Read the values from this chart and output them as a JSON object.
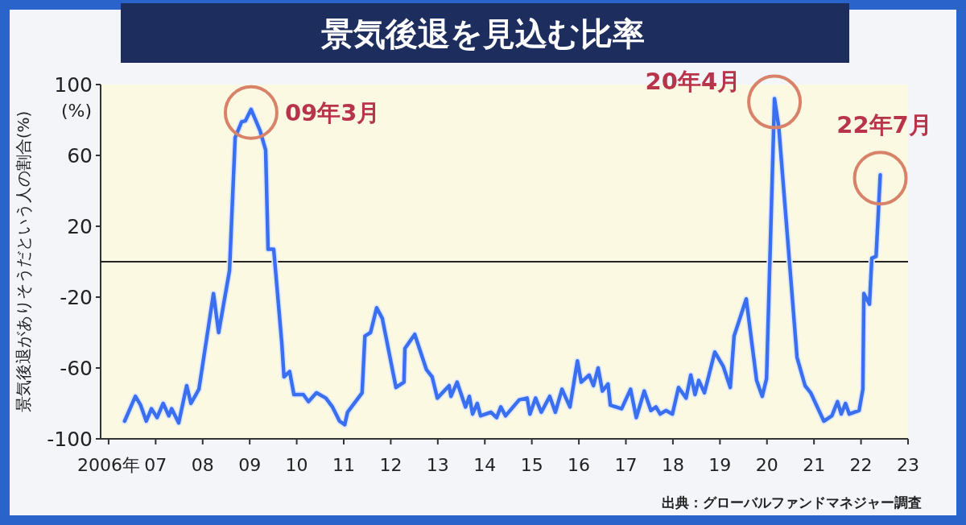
{
  "chart_data": {
    "type": "line",
    "title": "景気後退を見込む比率",
    "ylabel": "景気後退がありそうだという人の割合(%)",
    "x": [
      2006.34,
      2006.57,
      2006.68,
      2006.8,
      2006.91,
      2007.03,
      2007.16,
      2007.28,
      2007.34,
      2007.49,
      2007.66,
      2007.75,
      2007.92,
      2008.23,
      2008.34,
      2008.57,
      2008.69,
      2008.83,
      2008.91,
      2009.03,
      2009.22,
      2009.34,
      2009.39,
      2009.51,
      2009.68,
      2009.73,
      2009.85,
      2009.94,
      2010.14,
      2010.25,
      2010.42,
      2010.62,
      2010.76,
      2010.91,
      2011.02,
      2011.08,
      2011.39,
      2011.45,
      2011.57,
      2011.7,
      2011.82,
      2012.11,
      2012.28,
      2012.3,
      2012.51,
      2012.76,
      2012.88,
      2012.99,
      2013.24,
      2013.28,
      2013.41,
      2013.59,
      2013.67,
      2013.74,
      2013.84,
      2013.91,
      2014.13,
      2014.25,
      2014.34,
      2014.44,
      2014.73,
      2014.9,
      2014.96,
      2015.08,
      2015.2,
      2015.38,
      2015.5,
      2015.64,
      2015.81,
      2015.97,
      2016.05,
      2016.22,
      2016.31,
      2016.41,
      2016.5,
      2016.62,
      2016.67,
      2016.91,
      2017.1,
      2017.22,
      2017.39,
      2017.53,
      2017.64,
      2017.73,
      2017.85,
      2017.99,
      2018.12,
      2018.28,
      2018.38,
      2018.47,
      2018.55,
      2018.67,
      2018.89,
      2019.07,
      2019.22,
      2019.3,
      2019.56,
      2019.78,
      2019.9,
      2019.99,
      2020.16,
      2020.25,
      2020.64,
      2020.81,
      2020.93,
      2021.21,
      2021.38,
      2021.5,
      2021.58,
      2021.67,
      2021.75,
      2021.96,
      2022.04,
      2022.06,
      2022.18,
      2022.23,
      2022.32,
      2022.41
    ],
    "values": [
      -90,
      -76,
      -81,
      -90,
      -83,
      -88,
      -80,
      -87,
      -83,
      -91,
      -70,
      -80,
      -72,
      -18,
      -40,
      -5,
      70,
      79,
      79.5,
      86,
      74,
      63,
      7,
      7,
      -45,
      -65,
      -62,
      -75,
      -75,
      -79,
      -74,
      -77,
      -82,
      -90,
      -92,
      -85,
      -74,
      -42,
      -40,
      -26,
      -32,
      -71,
      -68,
      -49,
      -41,
      -61,
      -65,
      -77,
      -70,
      -76,
      -68,
      -82,
      -76,
      -86,
      -80,
      -87,
      -85,
      -88,
      -82,
      -87,
      -78,
      -77,
      -86,
      -77,
      -85,
      -76,
      -85,
      -72,
      -82,
      -56,
      -68,
      -64,
      -70,
      -60,
      -73,
      -69,
      -81,
      -83,
      -72,
      -88,
      -73,
      -84,
      -82,
      -86,
      -84,
      -86,
      -71,
      -77,
      -64,
      -75,
      -67,
      -74,
      -51,
      -59,
      -71,
      -42,
      -21,
      -67,
      -76,
      -66,
      92,
      76,
      -54,
      -70,
      -74,
      -90,
      -87,
      -79,
      -86,
      -80,
      -86,
      -84,
      -72,
      -18,
      -24,
      2,
      3,
      49
    ],
    "color": "#3a6ff0",
    "xlim": [
      2005.83,
      2023.0
    ],
    "xticks": [
      {
        "value": 2006,
        "label": "2006年"
      },
      {
        "value": 2007,
        "label": "07"
      },
      {
        "value": 2008,
        "label": "08"
      },
      {
        "value": 2009,
        "label": "09"
      },
      {
        "value": 2010,
        "label": "10"
      },
      {
        "value": 2011,
        "label": "11"
      },
      {
        "value": 2012,
        "label": "12"
      },
      {
        "value": 2013,
        "label": "13"
      },
      {
        "value": 2014,
        "label": "14"
      },
      {
        "value": 2015,
        "label": "15"
      },
      {
        "value": 2016,
        "label": "16"
      },
      {
        "value": 2017,
        "label": "17"
      },
      {
        "value": 2018,
        "label": "18"
      },
      {
        "value": 2019,
        "label": "19"
      },
      {
        "value": 2020,
        "label": "20"
      },
      {
        "value": 2021,
        "label": "21"
      },
      {
        "value": 2022,
        "label": "22"
      },
      {
        "value": 2023,
        "label": "23"
      }
    ],
    "ylim": [
      -100,
      100
    ],
    "yticks": [
      -100,
      -60,
      -20,
      20,
      60,
      100
    ],
    "ref_lines": [
      {
        "axis": "y",
        "value": 0,
        "color": "#222222"
      }
    ],
    "annotations": [
      "(%)",
      "出典：グローバルファンドマネジャー調査",
      {
        "text": "09年3月",
        "x": 2009.03,
        "y": 86
      },
      {
        "text": "20年4月",
        "x": 2020.16,
        "y": 92
      },
      {
        "text": "22年7月",
        "x": 2022.41,
        "y": 49
      }
    ]
  }
}
